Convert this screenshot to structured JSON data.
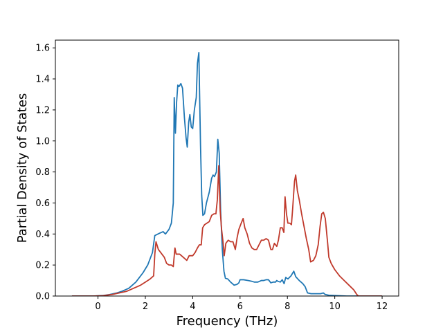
{
  "chart_data": {
    "type": "line",
    "xlabel": "Frequency (THz)",
    "ylabel": "Partial Density of States",
    "xlim": [
      -1.8,
      12.7
    ],
    "ylim": [
      0,
      1.65
    ],
    "xticks": [
      "0",
      "2",
      "4",
      "6",
      "8",
      "10",
      "12"
    ],
    "yticks": [
      "0.0",
      "0.2",
      "0.4",
      "0.6",
      "0.8",
      "1.0",
      "1.2",
      "1.4",
      "1.6"
    ],
    "grid": false,
    "series": [
      {
        "color": "#1f77b4",
        "points": [
          [
            -1.1,
            0.0
          ],
          [
            -0.2,
            0.0
          ],
          [
            0.2,
            0.003
          ],
          [
            0.5,
            0.01
          ],
          [
            0.8,
            0.02
          ],
          [
            1.0,
            0.03
          ],
          [
            1.3,
            0.05
          ],
          [
            1.6,
            0.09
          ],
          [
            1.9,
            0.15
          ],
          [
            2.1,
            0.2
          ],
          [
            2.3,
            0.28
          ],
          [
            2.4,
            0.39
          ],
          [
            2.6,
            0.405
          ],
          [
            2.75,
            0.415
          ],
          [
            2.85,
            0.4
          ],
          [
            3.0,
            0.43
          ],
          [
            3.1,
            0.47
          ],
          [
            3.18,
            0.6
          ],
          [
            3.22,
            1.28
          ],
          [
            3.27,
            1.05
          ],
          [
            3.32,
            1.25
          ],
          [
            3.37,
            1.36
          ],
          [
            3.42,
            1.35
          ],
          [
            3.5,
            1.37
          ],
          [
            3.57,
            1.34
          ],
          [
            3.65,
            1.15
          ],
          [
            3.72,
            1.02
          ],
          [
            3.77,
            0.96
          ],
          [
            3.83,
            1.12
          ],
          [
            3.88,
            1.17
          ],
          [
            3.94,
            1.09
          ],
          [
            4.0,
            1.08
          ],
          [
            4.07,
            1.2
          ],
          [
            4.15,
            1.28
          ],
          [
            4.2,
            1.5
          ],
          [
            4.26,
            1.57
          ],
          [
            4.33,
            0.97
          ],
          [
            4.38,
            0.65
          ],
          [
            4.43,
            0.52
          ],
          [
            4.5,
            0.53
          ],
          [
            4.58,
            0.6
          ],
          [
            4.7,
            0.67
          ],
          [
            4.8,
            0.76
          ],
          [
            4.86,
            0.78
          ],
          [
            4.92,
            0.77
          ],
          [
            5.0,
            0.8
          ],
          [
            5.06,
            1.01
          ],
          [
            5.12,
            0.92
          ],
          [
            5.18,
            0.55
          ],
          [
            5.25,
            0.3
          ],
          [
            5.32,
            0.16
          ],
          [
            5.38,
            0.115
          ],
          [
            5.48,
            0.11
          ],
          [
            5.6,
            0.09
          ],
          [
            5.75,
            0.07
          ],
          [
            5.87,
            0.075
          ],
          [
            5.95,
            0.085
          ],
          [
            6.0,
            0.105
          ],
          [
            6.15,
            0.105
          ],
          [
            6.35,
            0.1
          ],
          [
            6.5,
            0.095
          ],
          [
            6.6,
            0.09
          ],
          [
            6.75,
            0.09
          ],
          [
            6.9,
            0.1
          ],
          [
            7.0,
            0.1
          ],
          [
            7.1,
            0.105
          ],
          [
            7.2,
            0.105
          ],
          [
            7.3,
            0.085
          ],
          [
            7.4,
            0.09
          ],
          [
            7.5,
            0.09
          ],
          [
            7.55,
            0.1
          ],
          [
            7.6,
            0.095
          ],
          [
            7.7,
            0.09
          ],
          [
            7.78,
            0.105
          ],
          [
            7.86,
            0.08
          ],
          [
            7.93,
            0.12
          ],
          [
            8.02,
            0.11
          ],
          [
            8.15,
            0.13
          ],
          [
            8.27,
            0.16
          ],
          [
            8.35,
            0.125
          ],
          [
            8.5,
            0.1
          ],
          [
            8.65,
            0.08
          ],
          [
            8.75,
            0.06
          ],
          [
            8.85,
            0.02
          ],
          [
            9.0,
            0.015
          ],
          [
            9.2,
            0.015
          ],
          [
            9.4,
            0.015
          ],
          [
            9.52,
            0.02
          ],
          [
            9.6,
            0.01
          ],
          [
            9.75,
            0.005
          ],
          [
            10.0,
            0.003
          ],
          [
            10.5,
            0.0
          ],
          [
            12.0,
            0.0
          ]
        ]
      },
      {
        "color": "#c0392b",
        "points": [
          [
            -1.1,
            0.0
          ],
          [
            -0.2,
            0.0
          ],
          [
            0.2,
            0.002
          ],
          [
            0.6,
            0.01
          ],
          [
            0.9,
            0.02
          ],
          [
            1.2,
            0.03
          ],
          [
            1.5,
            0.05
          ],
          [
            1.8,
            0.07
          ],
          [
            2.0,
            0.09
          ],
          [
            2.2,
            0.11
          ],
          [
            2.35,
            0.13
          ],
          [
            2.4,
            0.27
          ],
          [
            2.45,
            0.35
          ],
          [
            2.55,
            0.3
          ],
          [
            2.7,
            0.27
          ],
          [
            2.8,
            0.25
          ],
          [
            2.9,
            0.21
          ],
          [
            3.0,
            0.2
          ],
          [
            3.1,
            0.2
          ],
          [
            3.18,
            0.19
          ],
          [
            3.25,
            0.31
          ],
          [
            3.3,
            0.27
          ],
          [
            3.45,
            0.27
          ],
          [
            3.6,
            0.25
          ],
          [
            3.75,
            0.23
          ],
          [
            3.85,
            0.26
          ],
          [
            4.0,
            0.26
          ],
          [
            4.1,
            0.28
          ],
          [
            4.2,
            0.31
          ],
          [
            4.28,
            0.33
          ],
          [
            4.36,
            0.33
          ],
          [
            4.42,
            0.44
          ],
          [
            4.5,
            0.46
          ],
          [
            4.6,
            0.47
          ],
          [
            4.7,
            0.48
          ],
          [
            4.8,
            0.52
          ],
          [
            4.9,
            0.53
          ],
          [
            4.98,
            0.53
          ],
          [
            5.04,
            0.62
          ],
          [
            5.1,
            0.84
          ],
          [
            5.16,
            0.55
          ],
          [
            5.22,
            0.43
          ],
          [
            5.28,
            0.35
          ],
          [
            5.33,
            0.26
          ],
          [
            5.4,
            0.34
          ],
          [
            5.5,
            0.36
          ],
          [
            5.6,
            0.35
          ],
          [
            5.7,
            0.35
          ],
          [
            5.8,
            0.3
          ],
          [
            5.88,
            0.38
          ],
          [
            5.95,
            0.43
          ],
          [
            6.05,
            0.47
          ],
          [
            6.13,
            0.5
          ],
          [
            6.2,
            0.44
          ],
          [
            6.3,
            0.4
          ],
          [
            6.4,
            0.34
          ],
          [
            6.5,
            0.31
          ],
          [
            6.6,
            0.3
          ],
          [
            6.7,
            0.3
          ],
          [
            6.8,
            0.33
          ],
          [
            6.9,
            0.36
          ],
          [
            7.0,
            0.36
          ],
          [
            7.1,
            0.37
          ],
          [
            7.2,
            0.36
          ],
          [
            7.3,
            0.3
          ],
          [
            7.37,
            0.3
          ],
          [
            7.45,
            0.34
          ],
          [
            7.55,
            0.32
          ],
          [
            7.62,
            0.36
          ],
          [
            7.7,
            0.44
          ],
          [
            7.78,
            0.44
          ],
          [
            7.85,
            0.41
          ],
          [
            7.9,
            0.64
          ],
          [
            7.96,
            0.53
          ],
          [
            8.02,
            0.47
          ],
          [
            8.1,
            0.47
          ],
          [
            8.17,
            0.46
          ],
          [
            8.22,
            0.56
          ],
          [
            8.3,
            0.74
          ],
          [
            8.35,
            0.78
          ],
          [
            8.42,
            0.68
          ],
          [
            8.5,
            0.62
          ],
          [
            8.6,
            0.53
          ],
          [
            8.7,
            0.45
          ],
          [
            8.8,
            0.37
          ],
          [
            8.9,
            0.3
          ],
          [
            8.98,
            0.22
          ],
          [
            9.1,
            0.23
          ],
          [
            9.2,
            0.26
          ],
          [
            9.3,
            0.33
          ],
          [
            9.38,
            0.45
          ],
          [
            9.45,
            0.53
          ],
          [
            9.52,
            0.54
          ],
          [
            9.6,
            0.5
          ],
          [
            9.7,
            0.34
          ],
          [
            9.75,
            0.25
          ],
          [
            9.85,
            0.21
          ],
          [
            10.0,
            0.17
          ],
          [
            10.2,
            0.13
          ],
          [
            10.4,
            0.1
          ],
          [
            10.6,
            0.07
          ],
          [
            10.8,
            0.04
          ],
          [
            10.93,
            0.01
          ],
          [
            11.0,
            0.0
          ],
          [
            12.0,
            0.0
          ]
        ]
      }
    ]
  }
}
